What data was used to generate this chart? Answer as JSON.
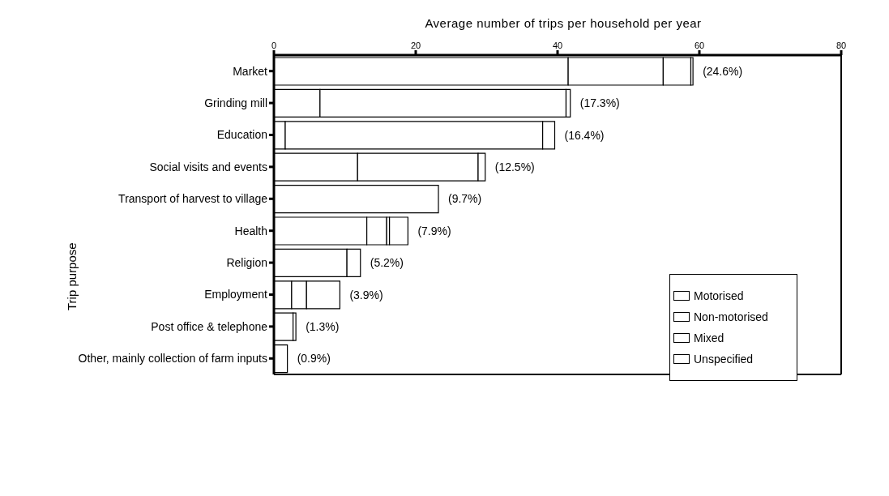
{
  "chart_data": {
    "type": "bar",
    "orientation": "horizontal",
    "stacked": true,
    "xlabel": "Average number of trips per household per year",
    "ylabel": "Trip purpose",
    "categories": [
      "Market",
      "Grinding mill",
      "Education",
      "Social visits and events",
      "Transport of harvest to village",
      "Health",
      "Religion",
      "Employment",
      "Post office & telephone",
      "Other, mainly collection of farm inputs"
    ],
    "series": [
      {
        "name": "Motorised",
        "color": "#ffffff",
        "values": [
          41.5,
          6.5,
          1.6,
          11.8,
          23.2,
          13.1,
          10.3,
          2.5,
          2.7,
          1.9
        ]
      },
      {
        "name": "Non-motorised",
        "color": "#ffffff",
        "values": [
          13.4,
          34.7,
          36.3,
          17.0,
          null,
          2.8,
          1.9,
          2.1,
          0.4,
          null
        ]
      },
      {
        "name": "Mixed",
        "color": "#ffffff",
        "values": [
          3.9,
          0.6,
          1.7,
          1.0,
          null,
          0.4,
          null,
          4.7,
          null,
          null
        ]
      },
      {
        "name": "Unspecified",
        "color": "#ffffff",
        "values": [
          0.3,
          null,
          null,
          null,
          null,
          2.6,
          null,
          null,
          null,
          null
        ]
      }
    ],
    "annotations": [
      {
        "text": "(24.6%)",
        "x": 59.1,
        "y": "Market"
      },
      {
        "text": "(17.3%)",
        "x": 41.8,
        "y": "Grinding mill"
      },
      {
        "text": "(16.4%)",
        "x": 39.6,
        "y": "Education"
      },
      {
        "text": "(12.5%)",
        "x": 29.8,
        "y": "Social visits and events"
      },
      {
        "text": "(9.7%)",
        "x": 23.2,
        "y": "Transport of harvest to village"
      },
      {
        "text": "(7.9%)",
        "x": 18.9,
        "y": "Health"
      },
      {
        "text": "(5.2%)",
        "x": 12.2,
        "y": "Religion"
      },
      {
        "text": "(3.9%)",
        "x": 9.3,
        "y": "Employment"
      },
      {
        "text": "(1.3%)",
        "x": 3.1,
        "y": "Post office & telephone"
      },
      {
        "text": "(0.9%)",
        "x": 1.9,
        "y": "Other, mainly collection of farm inputs"
      }
    ],
    "xlim": [
      0,
      80
    ],
    "xticks": [
      0,
      20,
      40,
      60,
      80
    ],
    "legend": "right"
  }
}
